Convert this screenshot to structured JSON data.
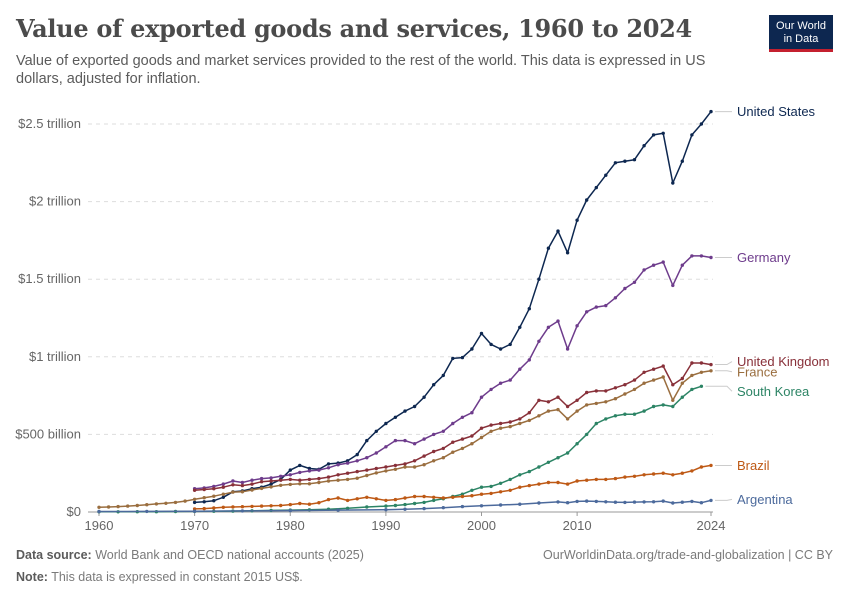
{
  "title": "Value of exported goods and services, 1960 to 2024",
  "subtitle": "Value of exported goods and market services provided to the rest of the world. This data is expressed in US dollars, adjusted for inflation.",
  "logo": {
    "line1": "Our World",
    "line2": "in Data"
  },
  "footer": {
    "source_label": "Data source:",
    "source_text": "World Bank and OECD national accounts (2025)",
    "url_text": "OurWorldinData.org/trade-and-globalization | CC BY",
    "note_label": "Note:",
    "note_text": "This data is expressed in constant 2015 US$."
  },
  "colors": {
    "grid": "#dddddd",
    "axis_text": "#666666"
  },
  "chart_data": {
    "type": "line",
    "title": "Value of exported goods and services, 1960 to 2024",
    "xlabel": "",
    "ylabel": "",
    "xlim": [
      1959,
      2025
    ],
    "ylim": [
      0,
      2700
    ],
    "unit": "billion constant 2015 US$",
    "x_ticks": [
      {
        "value": 1960,
        "label": "1960"
      },
      {
        "value": 1970,
        "label": "1970"
      },
      {
        "value": 1980,
        "label": "1980"
      },
      {
        "value": 1990,
        "label": "1990"
      },
      {
        "value": 2000,
        "label": "2000"
      },
      {
        "value": 2010,
        "label": "2010"
      },
      {
        "value": 2024,
        "label": "2024"
      }
    ],
    "y_ticks": [
      {
        "value": 0,
        "label": "$0"
      },
      {
        "value": 500,
        "label": "$500 billion"
      },
      {
        "value": 1000,
        "label": "$1 trillion"
      },
      {
        "value": 1500,
        "label": "$1.5 trillion"
      },
      {
        "value": 2000,
        "label": "$2 trillion"
      },
      {
        "value": 2500,
        "label": "$2.5 trillion"
      }
    ],
    "grid": true,
    "legend": "right, inline labels at line ends",
    "series": [
      {
        "name": "United States",
        "color": "#0d2750",
        "x": [
          1970,
          1971,
          1972,
          1973,
          1974,
          1975,
          1976,
          1977,
          1978,
          1979,
          1980,
          1981,
          1982,
          1983,
          1984,
          1985,
          1986,
          1987,
          1988,
          1989,
          1990,
          1991,
          1992,
          1993,
          1994,
          1995,
          1996,
          1997,
          1998,
          1999,
          2000,
          2001,
          2002,
          2003,
          2004,
          2005,
          2006,
          2007,
          2008,
          2009,
          2010,
          2011,
          2012,
          2013,
          2014,
          2015,
          2016,
          2017,
          2018,
          2019,
          2020,
          2021,
          2022,
          2023,
          2024
        ],
        "y": [
          62,
          66,
          73,
          95,
          130,
          135,
          150,
          160,
          180,
          210,
          270,
          300,
          280,
          275,
          310,
          315,
          330,
          370,
          460,
          520,
          570,
          610,
          650,
          680,
          740,
          820,
          880,
          990,
          995,
          1050,
          1150,
          1080,
          1050,
          1080,
          1190,
          1310,
          1500,
          1700,
          1810,
          1670,
          1880,
          2010,
          2090,
          2170,
          2250,
          2260,
          2270,
          2360,
          2430,
          2440,
          2120,
          2260,
          2430,
          2500,
          2580
        ]
      },
      {
        "name": "Germany",
        "color": "#6e3c8c",
        "x": [
          1970,
          1971,
          1972,
          1973,
          1974,
          1975,
          1976,
          1977,
          1978,
          1979,
          1980,
          1981,
          1982,
          1983,
          1984,
          1985,
          1986,
          1987,
          1988,
          1989,
          1990,
          1991,
          1992,
          1993,
          1994,
          1995,
          1996,
          1997,
          1998,
          1999,
          2000,
          2001,
          2002,
          2003,
          2004,
          2005,
          2006,
          2007,
          2008,
          2009,
          2010,
          2011,
          2012,
          2013,
          2014,
          2015,
          2016,
          2017,
          2018,
          2019,
          2020,
          2021,
          2022,
          2023,
          2024
        ],
        "y": [
          150,
          155,
          165,
          180,
          200,
          190,
          205,
          215,
          220,
          230,
          240,
          255,
          265,
          270,
          285,
          305,
          315,
          330,
          350,
          380,
          420,
          460,
          460,
          440,
          470,
          500,
          520,
          570,
          610,
          640,
          740,
          790,
          830,
          850,
          920,
          980,
          1100,
          1190,
          1230,
          1050,
          1200,
          1290,
          1320,
          1330,
          1380,
          1440,
          1480,
          1560,
          1590,
          1610,
          1460,
          1590,
          1650,
          1650,
          1640
        ]
      },
      {
        "name": "United Kingdom",
        "color": "#883039",
        "x": [
          1970,
          1971,
          1972,
          1973,
          1974,
          1975,
          1976,
          1977,
          1978,
          1979,
          1980,
          1981,
          1982,
          1983,
          1984,
          1985,
          1986,
          1987,
          1988,
          1989,
          1990,
          1991,
          1992,
          1993,
          1994,
          1995,
          1996,
          1997,
          1998,
          1999,
          2000,
          2001,
          2002,
          2003,
          2004,
          2005,
          2006,
          2007,
          2008,
          2009,
          2010,
          2011,
          2012,
          2013,
          2014,
          2015,
          2016,
          2017,
          2018,
          2019,
          2020,
          2021,
          2022,
          2023,
          2024
        ],
        "y": [
          140,
          145,
          150,
          160,
          175,
          170,
          180,
          195,
          200,
          205,
          210,
          205,
          210,
          215,
          225,
          240,
          250,
          260,
          270,
          280,
          290,
          300,
          310,
          330,
          360,
          390,
          410,
          450,
          470,
          490,
          540,
          560,
          570,
          580,
          600,
          640,
          720,
          710,
          740,
          680,
          720,
          770,
          780,
          780,
          800,
          820,
          850,
          900,
          920,
          940,
          820,
          860,
          960,
          960,
          950
        ]
      },
      {
        "name": "France",
        "color": "#9a6e3f",
        "x": [
          1960,
          1961,
          1962,
          1963,
          1964,
          1965,
          1966,
          1967,
          1968,
          1969,
          1970,
          1971,
          1972,
          1973,
          1974,
          1975,
          1976,
          1977,
          1978,
          1979,
          1980,
          1981,
          1982,
          1983,
          1984,
          1985,
          1986,
          1987,
          1988,
          1989,
          1990,
          1991,
          1992,
          1993,
          1994,
          1995,
          1996,
          1997,
          1998,
          1999,
          2000,
          2001,
          2002,
          2003,
          2004,
          2005,
          2006,
          2007,
          2008,
          2009,
          2010,
          2011,
          2012,
          2013,
          2014,
          2015,
          2016,
          2017,
          2018,
          2019,
          2020,
          2021,
          2022,
          2023,
          2024
        ],
        "y": [
          30,
          32,
          35,
          38,
          42,
          47,
          52,
          56,
          62,
          70,
          82,
          92,
          102,
          115,
          128,
          130,
          142,
          152,
          162,
          172,
          178,
          182,
          182,
          190,
          200,
          205,
          210,
          218,
          235,
          252,
          265,
          275,
          290,
          290,
          305,
          330,
          350,
          385,
          410,
          440,
          480,
          520,
          540,
          550,
          570,
          590,
          620,
          650,
          660,
          600,
          650,
          690,
          700,
          710,
          730,
          760,
          790,
          830,
          850,
          870,
          720,
          830,
          880,
          900,
          910
        ]
      },
      {
        "name": "South Korea",
        "color": "#2c8465",
        "x": [
          1960,
          1962,
          1964,
          1966,
          1968,
          1970,
          1972,
          1974,
          1976,
          1978,
          1980,
          1982,
          1984,
          1986,
          1988,
          1990,
          1991,
          1992,
          1993,
          1994,
          1995,
          1996,
          1997,
          1998,
          1999,
          2000,
          2001,
          2002,
          2003,
          2004,
          2005,
          2006,
          2007,
          2008,
          2009,
          2010,
          2011,
          2012,
          2013,
          2014,
          2015,
          2016,
          2017,
          2018,
          2019,
          2020,
          2021,
          2022,
          2023
        ],
        "y": [
          1,
          1,
          2,
          2,
          3,
          4,
          5,
          6,
          8,
          10,
          12,
          14,
          18,
          24,
          32,
          38,
          42,
          48,
          55,
          62,
          75,
          85,
          100,
          115,
          140,
          160,
          165,
          185,
          210,
          240,
          260,
          290,
          320,
          350,
          380,
          440,
          500,
          570,
          600,
          620,
          630,
          630,
          650,
          680,
          690,
          680,
          740,
          790,
          810
        ]
      },
      {
        "name": "Brazil",
        "color": "#be5915",
        "x": [
          1970,
          1971,
          1972,
          1973,
          1974,
          1975,
          1976,
          1977,
          1978,
          1979,
          1980,
          1981,
          1982,
          1983,
          1984,
          1985,
          1986,
          1987,
          1988,
          1989,
          1990,
          1991,
          1992,
          1993,
          1994,
          1995,
          1996,
          1997,
          1998,
          1999,
          2000,
          2001,
          2002,
          2003,
          2004,
          2005,
          2006,
          2007,
          2008,
          2009,
          2010,
          2011,
          2012,
          2013,
          2014,
          2015,
          2016,
          2017,
          2018,
          2019,
          2020,
          2021,
          2022,
          2023,
          2024
        ],
        "y": [
          20,
          22,
          26,
          30,
          32,
          34,
          36,
          38,
          40,
          42,
          48,
          55,
          50,
          60,
          80,
          90,
          75,
          85,
          95,
          85,
          75,
          80,
          90,
          100,
          100,
          95,
          90,
          95,
          100,
          105,
          115,
          120,
          130,
          140,
          160,
          170,
          180,
          190,
          190,
          180,
          200,
          205,
          210,
          210,
          215,
          225,
          230,
          240,
          245,
          250,
          240,
          250,
          265,
          290,
          300
        ]
      },
      {
        "name": "Argentina",
        "color": "#4c6a9c",
        "x": [
          1960,
          1965,
          1970,
          1975,
          1980,
          1985,
          1990,
          1992,
          1994,
          1996,
          1998,
          2000,
          2002,
          2004,
          2006,
          2008,
          2009,
          2010,
          2011,
          2012,
          2013,
          2014,
          2015,
          2016,
          2017,
          2018,
          2019,
          2020,
          2021,
          2022,
          2023,
          2024
        ],
        "y": [
          3,
          4,
          5,
          7,
          9,
          12,
          15,
          18,
          22,
          28,
          35,
          40,
          45,
          50,
          58,
          65,
          60,
          68,
          70,
          68,
          66,
          63,
          62,
          64,
          65,
          66,
          70,
          58,
          63,
          68,
          60,
          75
        ]
      }
    ]
  }
}
